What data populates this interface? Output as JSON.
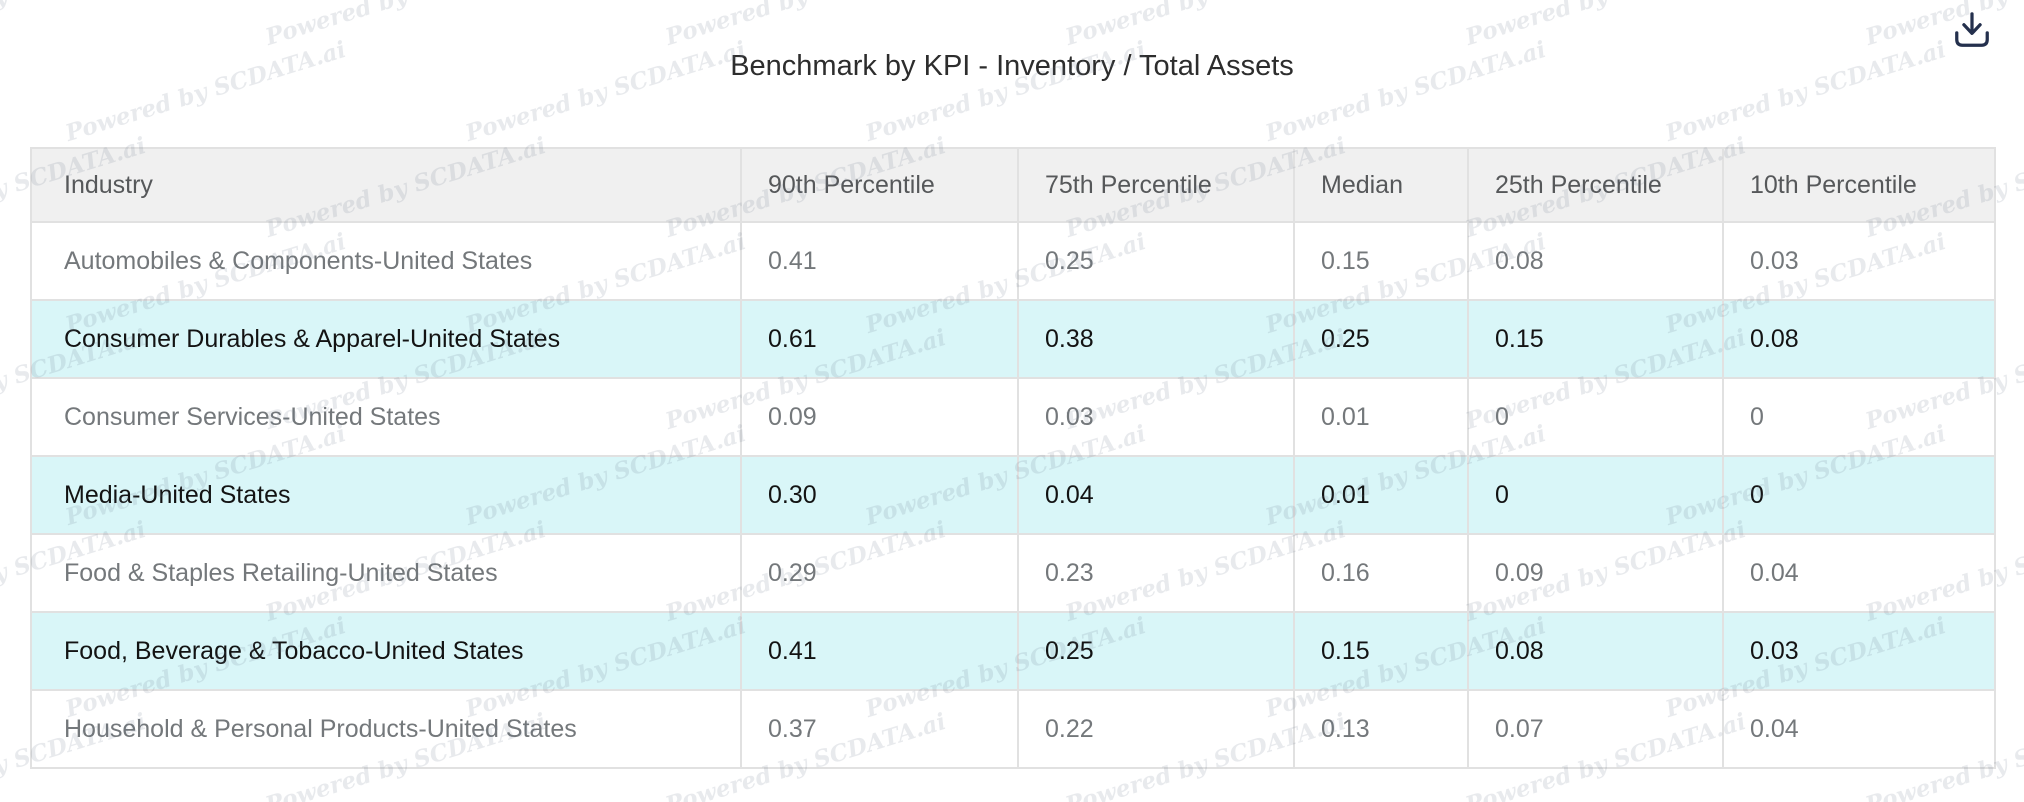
{
  "page": {
    "watermark_text": "Powered by SCDATA.ai"
  },
  "icons": {
    "download": "download-icon"
  },
  "colors": {
    "row_highlight": "#d9f6f8",
    "header_background": "#f0f0f0",
    "table_border": "#e1e1e1",
    "muted_text": "#74787b",
    "highlight_text": "#131313",
    "icon_navy": "#24304d"
  },
  "chart_data": {
    "type": "table",
    "title": "Benchmark by KPI - Inventory / Total Assets",
    "columns": [
      "Industry",
      "90th Percentile",
      "75th Percentile",
      "Median",
      "25th Percentile",
      "10th Percentile"
    ],
    "rows": [
      {
        "industry": "Automobiles & Components-United States",
        "values": [
          "0.41",
          "0.25",
          "0.15",
          "0.08",
          "0.03"
        ],
        "highlighted": false
      },
      {
        "industry": "Consumer Durables & Apparel-United States",
        "values": [
          "0.61",
          "0.38",
          "0.25",
          "0.15",
          "0.08"
        ],
        "highlighted": true
      },
      {
        "industry": "Consumer Services-United States",
        "values": [
          "0.09",
          "0.03",
          "0.01",
          "0",
          "0"
        ],
        "highlighted": false
      },
      {
        "industry": "Media-United States",
        "values": [
          "0.30",
          "0.04",
          "0.01",
          "0",
          "0"
        ],
        "highlighted": true
      },
      {
        "industry": "Food & Staples Retailing-United States",
        "values": [
          "0.29",
          "0.23",
          "0.16",
          "0.09",
          "0.04"
        ],
        "highlighted": false
      },
      {
        "industry": "Food, Beverage & Tobacco-United States",
        "values": [
          "0.41",
          "0.25",
          "0.15",
          "0.08",
          "0.03"
        ],
        "highlighted": true
      },
      {
        "industry": "Household & Personal Products-United States",
        "values": [
          "0.37",
          "0.22",
          "0.13",
          "0.07",
          "0.04"
        ],
        "highlighted": false
      }
    ]
  }
}
